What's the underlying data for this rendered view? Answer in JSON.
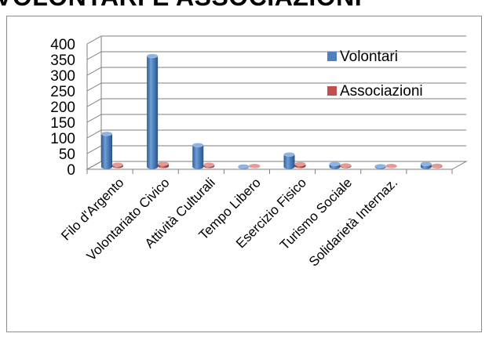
{
  "title": "VOLONTARI E ASSOCIAZIONI",
  "chart_data": {
    "type": "bar",
    "style": "3d-cylinder",
    "title": "",
    "xlabel": "",
    "ylabel": "",
    "ylim": [
      0,
      400
    ],
    "yticks": [
      0,
      50,
      100,
      150,
      200,
      250,
      300,
      350,
      400
    ],
    "grid": true,
    "legend_position": "top-right",
    "categories": [
      "Filo d'Argento",
      "Volontariato Civico",
      "Attività Culturali",
      "Tempo Libero",
      "Esercizio Fisico",
      "Turismo Sociale",
      "Solidarietà Internaz.",
      ""
    ],
    "series": [
      {
        "name": "Volontari",
        "color": "#4f81bd",
        "values": [
          106,
          354,
          70,
          2,
          40,
          10,
          3,
          10
        ]
      },
      {
        "name": "Associazioni",
        "color": "#c0504d",
        "values": [
          5,
          8,
          5,
          1,
          7,
          3,
          1,
          2
        ]
      }
    ]
  }
}
